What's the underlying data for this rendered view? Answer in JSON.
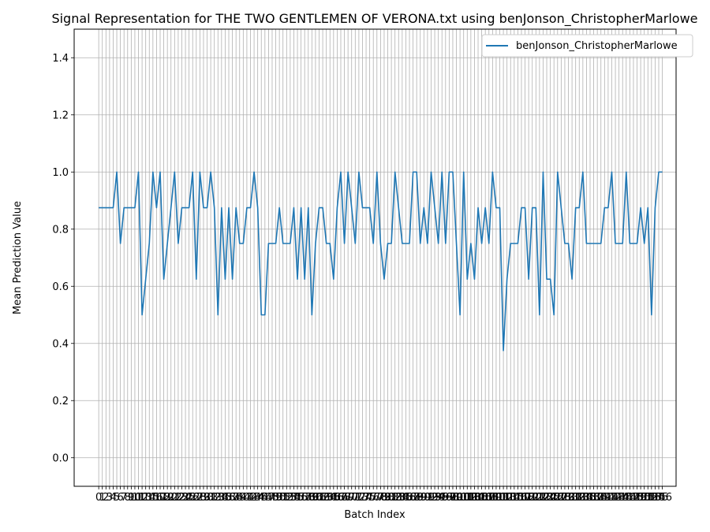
{
  "chart_data": {
    "type": "line",
    "title": "Signal Representation for THE TWO GENTLEMEN OF VERONA.txt using benJonson_ChristopherMarlowe",
    "xlabel": "Batch Index",
    "ylabel": "Mean Prediction Value",
    "xlim": [
      -6.8,
      159.8
    ],
    "ylim": [
      -0.1,
      1.5
    ],
    "yticks": [
      0.0,
      0.2,
      0.4,
      0.6,
      0.8,
      1.0,
      1.2,
      1.4
    ],
    "ytick_labels": [
      "0.0",
      "0.2",
      "0.4",
      "0.6",
      "0.8",
      "1.0",
      "1.2",
      "1.4"
    ],
    "grid": true,
    "legend_position": "top-right",
    "series": [
      {
        "name": "benJonson_ChristopherMarlowe",
        "color": "#1f77b4",
        "values": [
          0.875,
          0.875,
          0.875,
          0.875,
          0.875,
          1.0,
          0.75,
          0.875,
          0.875,
          0.875,
          0.875,
          1.0,
          0.5,
          0.625,
          0.75,
          1.0,
          0.875,
          1.0,
          0.625,
          0.75,
          0.875,
          1.0,
          0.75,
          0.875,
          0.875,
          0.875,
          1.0,
          0.625,
          1.0,
          0.875,
          0.875,
          1.0,
          0.875,
          0.5,
          0.875,
          0.625,
          0.875,
          0.625,
          0.875,
          0.75,
          0.75,
          0.875,
          0.875,
          1.0,
          0.875,
          0.5,
          0.5,
          0.75,
          0.75,
          0.75,
          0.875,
          0.75,
          0.75,
          0.75,
          0.875,
          0.625,
          0.875,
          0.625,
          0.875,
          0.5,
          0.75,
          0.875,
          0.875,
          0.75,
          0.75,
          0.625,
          0.875,
          1.0,
          0.75,
          1.0,
          0.875,
          0.75,
          1.0,
          0.875,
          0.875,
          0.875,
          0.75,
          1.0,
          0.75,
          0.625,
          0.75,
          0.75,
          1.0,
          0.875,
          0.75,
          0.75,
          0.75,
          1.0,
          1.0,
          0.75,
          0.875,
          0.75,
          1.0,
          0.875,
          0.75,
          1.0,
          0.75,
          1.0,
          1.0,
          0.75,
          0.5,
          1.0,
          0.625,
          0.75,
          0.625,
          0.875,
          0.75,
          0.875,
          0.75,
          1.0,
          0.875,
          0.875,
          0.375,
          0.625,
          0.75,
          0.75,
          0.75,
          0.875,
          0.875,
          0.625,
          0.875,
          0.875,
          0.5,
          1.0,
          0.625,
          0.625,
          0.5,
          1.0,
          0.875,
          0.75,
          0.75,
          0.625,
          0.875,
          0.875,
          1.0,
          0.75,
          0.75,
          0.75,
          0.75,
          0.75,
          0.875,
          0.875,
          1.0,
          0.75,
          0.75,
          0.75,
          1.0,
          0.75,
          0.75,
          0.75,
          0.875,
          0.75,
          0.875,
          0.5,
          0.875,
          1.0,
          1.0
        ]
      }
    ]
  }
}
